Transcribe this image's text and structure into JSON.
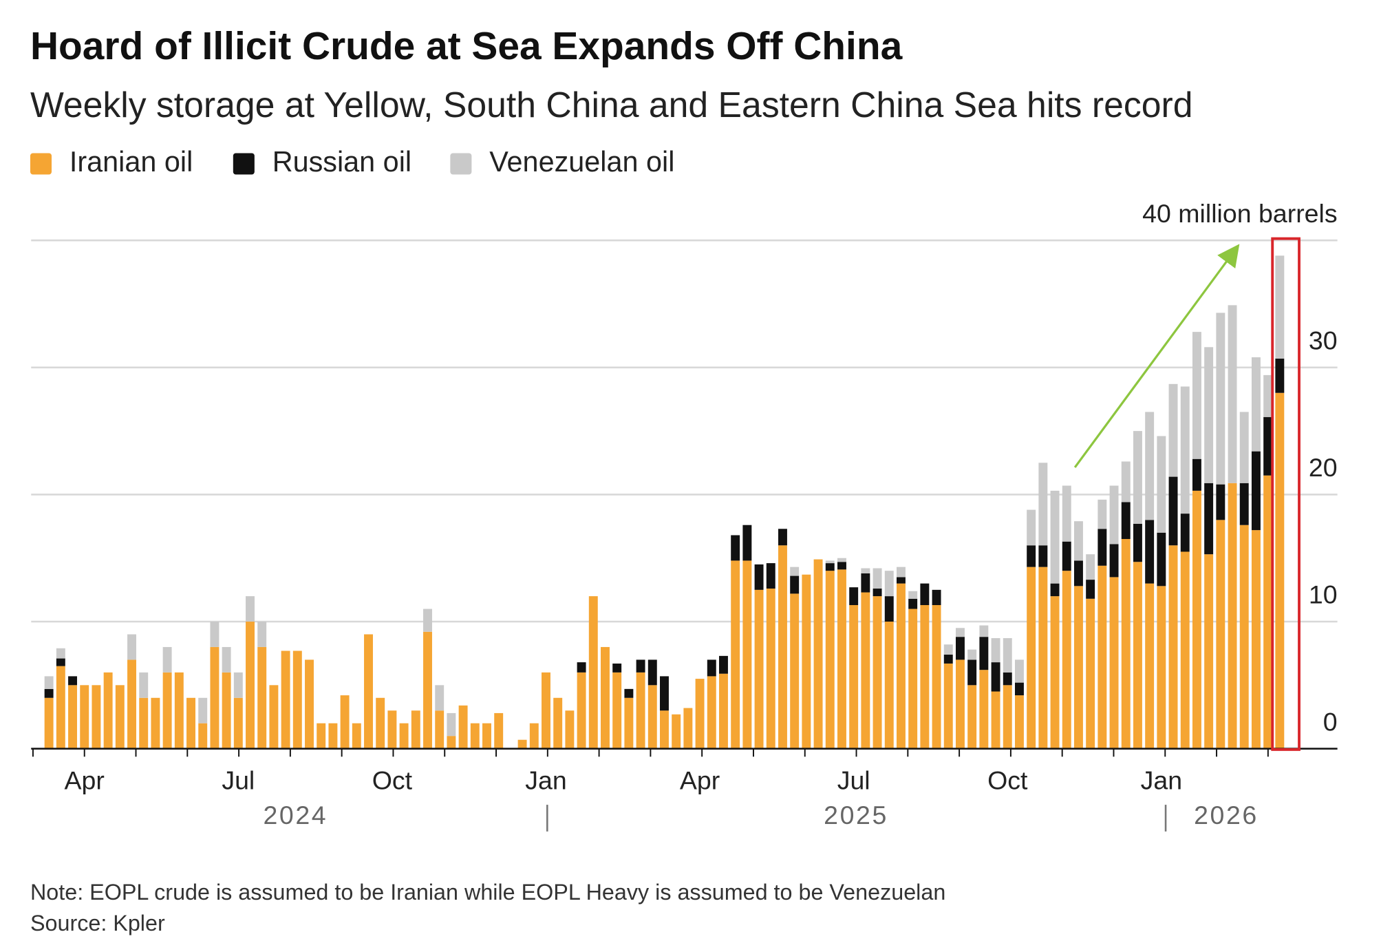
{
  "chart_data": {
    "type": "stacked_bar",
    "title": "Hoard of Illicit Crude at Sea Expands Off China",
    "subtitle": "Weekly storage at Yellow, South China and Eastern China Sea hits record",
    "note": "Note: EOPL crude is assumed to be Iranian while EOPL Heavy is assumed to be Venezuelan",
    "source": "Source: Kpler",
    "year_labels": [
      "2024",
      "2025",
      "2026"
    ],
    "categories": [
      null,
      null,
      null,
      "Apr",
      null,
      null,
      null,
      null,
      null,
      null,
      null,
      null,
      null,
      null,
      null,
      null,
      "Jul",
      null,
      null,
      null,
      null,
      null,
      null,
      null,
      null,
      null,
      null,
      null,
      null,
      "Oct",
      null,
      null,
      null,
      null,
      null,
      null,
      null,
      null,
      null,
      null,
      null,
      null,
      "Jan",
      null,
      null,
      null,
      null,
      null,
      null,
      null,
      null,
      null,
      null,
      null,
      null,
      "Apr",
      null,
      null,
      null,
      null,
      null,
      null,
      null,
      null,
      null,
      null,
      null,
      null,
      "Jul",
      null,
      null,
      null,
      null,
      null,
      null,
      null,
      null,
      null,
      null,
      null,
      null,
      "Oct",
      null,
      null,
      null,
      null,
      null,
      null,
      null,
      null,
      null,
      null,
      null,
      null,
      "Jan",
      null,
      null,
      null,
      null,
      null,
      null,
      null,
      null,
      null,
      null
    ],
    "series": [
      {
        "name": "Iranian oil",
        "color": "#f5a533",
        "values": [
          4,
          6.5,
          5,
          5,
          5,
          6,
          5,
          7,
          4,
          4,
          6,
          6,
          4,
          2,
          8,
          6,
          4,
          10,
          8,
          5,
          7.7,
          7.7,
          7,
          2,
          2,
          4.2,
          2,
          9,
          4,
          3,
          2,
          3,
          9.2,
          3,
          1,
          3.4,
          2,
          2,
          2.8,
          0,
          0.7,
          2,
          6,
          4,
          3,
          6,
          12,
          8,
          6,
          4,
          6,
          5,
          3,
          2.7,
          3.2,
          5.5,
          5.7,
          5.9,
          14.8,
          14.8,
          12.5,
          12.6,
          16,
          12.2,
          13.7,
          14.9,
          14,
          14.1,
          11.3,
          12.3,
          12,
          10,
          13,
          11,
          11.3,
          11.3,
          6.7,
          7,
          5,
          6.2,
          4.5,
          5,
          4.2,
          14.3,
          14.3,
          12,
          14,
          12.8,
          11.8,
          14.4,
          13.5,
          16.5,
          14.7,
          13,
          12.8,
          16,
          15.5,
          20.3,
          15.3,
          18,
          20.9,
          17.6,
          17.2,
          21.5,
          28
        ]
      },
      {
        "name": "Russian oil",
        "color": "#111111",
        "values": [
          0.7,
          0.6,
          0.7,
          0,
          0,
          0,
          0,
          0,
          0,
          0,
          0,
          0,
          0,
          0,
          0,
          0,
          0,
          0,
          0,
          0,
          0,
          0,
          0,
          0,
          0,
          0,
          0,
          0,
          0,
          0,
          0,
          0,
          0,
          0,
          0,
          0,
          0,
          0,
          0,
          0,
          0,
          0,
          0,
          0,
          0,
          0.8,
          0,
          0,
          0.7,
          0.7,
          1,
          2,
          2.7,
          0,
          0,
          0,
          1.3,
          1.4,
          2,
          2.8,
          2,
          2,
          1.3,
          1.4,
          0,
          0,
          0.6,
          0.6,
          1.4,
          1.5,
          0.6,
          2,
          0.5,
          0.8,
          1.7,
          1.2,
          0.7,
          1.8,
          2,
          2.6,
          2.3,
          1,
          1,
          1.7,
          1.7,
          1,
          2.3,
          2,
          1.5,
          2.9,
          2.6,
          2.9,
          3,
          5,
          4.2,
          5.4,
          3,
          2.5,
          5.6,
          2.8,
          0,
          3.3,
          6.2,
          4.6,
          2.7
        ]
      },
      {
        "name": "Venezuelan oil",
        "color": "#c9c9c9",
        "values": [
          1,
          0.8,
          0,
          0,
          0,
          0,
          0,
          2,
          2,
          0,
          2,
          0,
          0,
          2,
          2,
          2,
          2,
          2,
          2,
          0,
          0,
          0,
          0,
          0,
          0,
          0,
          0,
          0,
          0,
          0,
          0,
          0,
          1.8,
          2,
          1.8,
          0,
          0,
          0,
          0,
          0,
          0,
          0,
          0,
          0,
          0,
          0,
          0,
          0,
          0,
          0,
          0,
          0,
          0,
          0,
          0,
          0,
          0,
          0,
          0,
          0,
          0,
          0,
          0,
          0.7,
          0,
          0,
          0.2,
          0.3,
          0,
          0.4,
          1.6,
          2,
          0.8,
          0.6,
          0,
          0,
          0.8,
          0.7,
          0.8,
          0.9,
          1.9,
          2.7,
          1.8,
          2.8,
          6.5,
          7.3,
          4.4,
          3.1,
          2,
          2.3,
          4.6,
          3.2,
          7.3,
          8.5,
          7.6,
          7.3,
          10,
          10,
          10.7,
          13.5,
          14,
          5.6,
          7.4,
          3.3,
          8.1
        ]
      }
    ],
    "ylim": [
      0,
      40
    ],
    "yticks": [
      0,
      10,
      20,
      30,
      {
        "value": 40,
        "label": "40 million barrels"
      }
    ],
    "grid": true
  }
}
